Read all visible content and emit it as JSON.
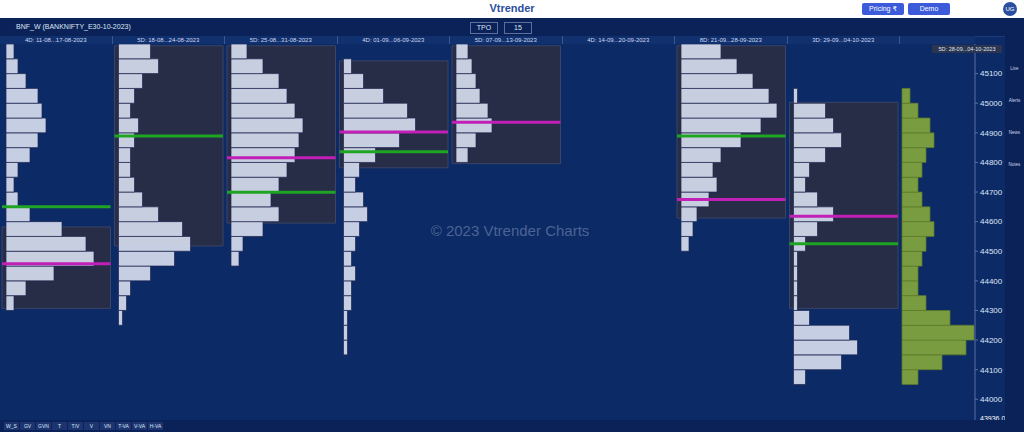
{
  "header": {
    "logo": "Vtrender",
    "symbol": "BNF_W (BANKNIFTY_E30-10-2023)",
    "chart_type": "TPO",
    "interval": "15",
    "pricing": "Pricing ₹",
    "demo": "Demo",
    "user": "UG"
  },
  "footer": {
    "buttons": [
      "W_S",
      "GV",
      "GVN",
      "T",
      "T/V",
      "V",
      "VN",
      "T-VA",
      "V-VA",
      "H-VA"
    ]
  },
  "sidebar": [
    "Live",
    "Alerts",
    "News",
    "Notes"
  ],
  "watermark": "© 2023 Vtrender Charts",
  "chart_data": {
    "type": "market_profile",
    "ylim": [
      43930,
      45200
    ],
    "yticks": [
      44000,
      44100,
      44200,
      44300,
      44400,
      44500,
      44600,
      44700,
      44800,
      44900,
      45000,
      45100
    ],
    "range_label": "5D: 28-09...04-10-2023",
    "last_price": {
      "value": 43936,
      "label": "43936.00"
    },
    "periods": [
      {
        "label": "4D: 11-08...17-08-2023",
        "box": [
          44307,
          44582
        ],
        "poc": 44458,
        "vpoc": 44650,
        "tpo": {
          "prices": [
            44300,
            44350,
            44400,
            44450,
            44500,
            44550,
            44600,
            44650,
            44700,
            44750,
            44800,
            44850,
            44900,
            44950,
            45000,
            45050,
            45100,
            45150
          ],
          "counts": [
            2,
            5,
            12,
            22,
            20,
            14,
            6,
            3,
            2,
            3,
            6,
            8,
            10,
            9,
            8,
            5,
            3,
            2
          ]
        }
      },
      {
        "label": "5D: 18-08...24-08-2023",
        "box": [
          44518,
          45194
        ],
        "vpoc": 44889,
        "tpo": {
          "prices": [
            44250,
            44300,
            44350,
            44400,
            44450,
            44500,
            44550,
            44600,
            44650,
            44700,
            44750,
            44800,
            44850,
            44900,
            44950,
            45000,
            45050,
            45100,
            45150
          ],
          "counts": [
            1,
            2,
            3,
            8,
            14,
            18,
            16,
            10,
            6,
            4,
            3,
            3,
            4,
            5,
            3,
            4,
            6,
            10,
            8
          ]
        }
      },
      {
        "label": "5D: 25-08...31-08-2023",
        "box": [
          44595,
          45194
        ],
        "poc": 44816,
        "vpoc": 44699,
        "tpo": {
          "prices": [
            44450,
            44500,
            44550,
            44600,
            44650,
            44700,
            44750,
            44800,
            44850,
            44900,
            44950,
            45000,
            45050,
            45100,
            45150
          ],
          "counts": [
            2,
            3,
            8,
            12,
            10,
            12,
            14,
            16,
            17,
            18,
            16,
            14,
            12,
            8,
            4
          ]
        }
      },
      {
        "label": "4D: 01-09...06-09-2023",
        "box": [
          44782,
          45143
        ],
        "poc": 44903,
        "vpoc": 44836,
        "tpo": {
          "prices": [
            44150,
            44200,
            44250,
            44300,
            44350,
            44400,
            44450,
            44500,
            44550,
            44600,
            44650,
            44700,
            44750,
            44800,
            44850,
            44900,
            44950,
            45000,
            45050,
            45100
          ],
          "counts": [
            1,
            1,
            1,
            2,
            2,
            3,
            2,
            3,
            4,
            6,
            5,
            3,
            4,
            8,
            14,
            18,
            16,
            10,
            5,
            2
          ]
        }
      },
      {
        "label": "5D: 07-09...13-09-2023",
        "box": [
          44796,
          45194
        ],
        "poc": 44936,
        "tpo": {
          "prices": [
            44800,
            44850,
            44900,
            44950,
            45000,
            45050,
            45100,
            45150
          ],
          "counts": [
            3,
            5,
            9,
            8,
            6,
            5,
            4,
            3
          ]
        }
      },
      {
        "label": "4D: 14-09...20-09-2023"
      },
      {
        "label": "8D: 21-09...28-09-2023",
        "box": [
          44612,
          45194
        ],
        "poc": 44675,
        "vpoc": 44889,
        "tpo": {
          "prices": [
            44500,
            44550,
            44600,
            44650,
            44700,
            44750,
            44800,
            44850,
            44900,
            44950,
            45000,
            45050,
            45100,
            45150
          ],
          "counts": [
            2,
            3,
            4,
            7,
            9,
            8,
            10,
            15,
            20,
            24,
            22,
            18,
            14,
            10
          ]
        }
      },
      {
        "label": "3D: 29-09...04-10-2023",
        "box": [
          44307,
          45003
        ],
        "poc": 44618,
        "vpoc": 44525,
        "tpo": {
          "prices": [
            44050,
            44100,
            44150,
            44200,
            44250,
            44300,
            44350,
            44400,
            44450,
            44500,
            44550,
            44600,
            44650,
            44700,
            44750,
            44800,
            44850,
            44900,
            44950,
            45000
          ],
          "counts": [
            3,
            12,
            16,
            14,
            4,
            1,
            1,
            1,
            1,
            3,
            6,
            10,
            6,
            3,
            4,
            8,
            12,
            10,
            8,
            1
          ]
        }
      }
    ],
    "composite": {
      "prices": [
        44050,
        44100,
        44150,
        44200,
        44250,
        44300,
        44350,
        44400,
        44450,
        44500,
        44550,
        44600,
        44650,
        44700,
        44750,
        44800,
        44850,
        44900,
        44950,
        45000
      ],
      "counts": [
        4,
        10,
        16,
        18,
        12,
        6,
        4,
        4,
        5,
        6,
        8,
        7,
        5,
        4,
        5,
        6,
        8,
        7,
        4,
        2
      ]
    }
  }
}
